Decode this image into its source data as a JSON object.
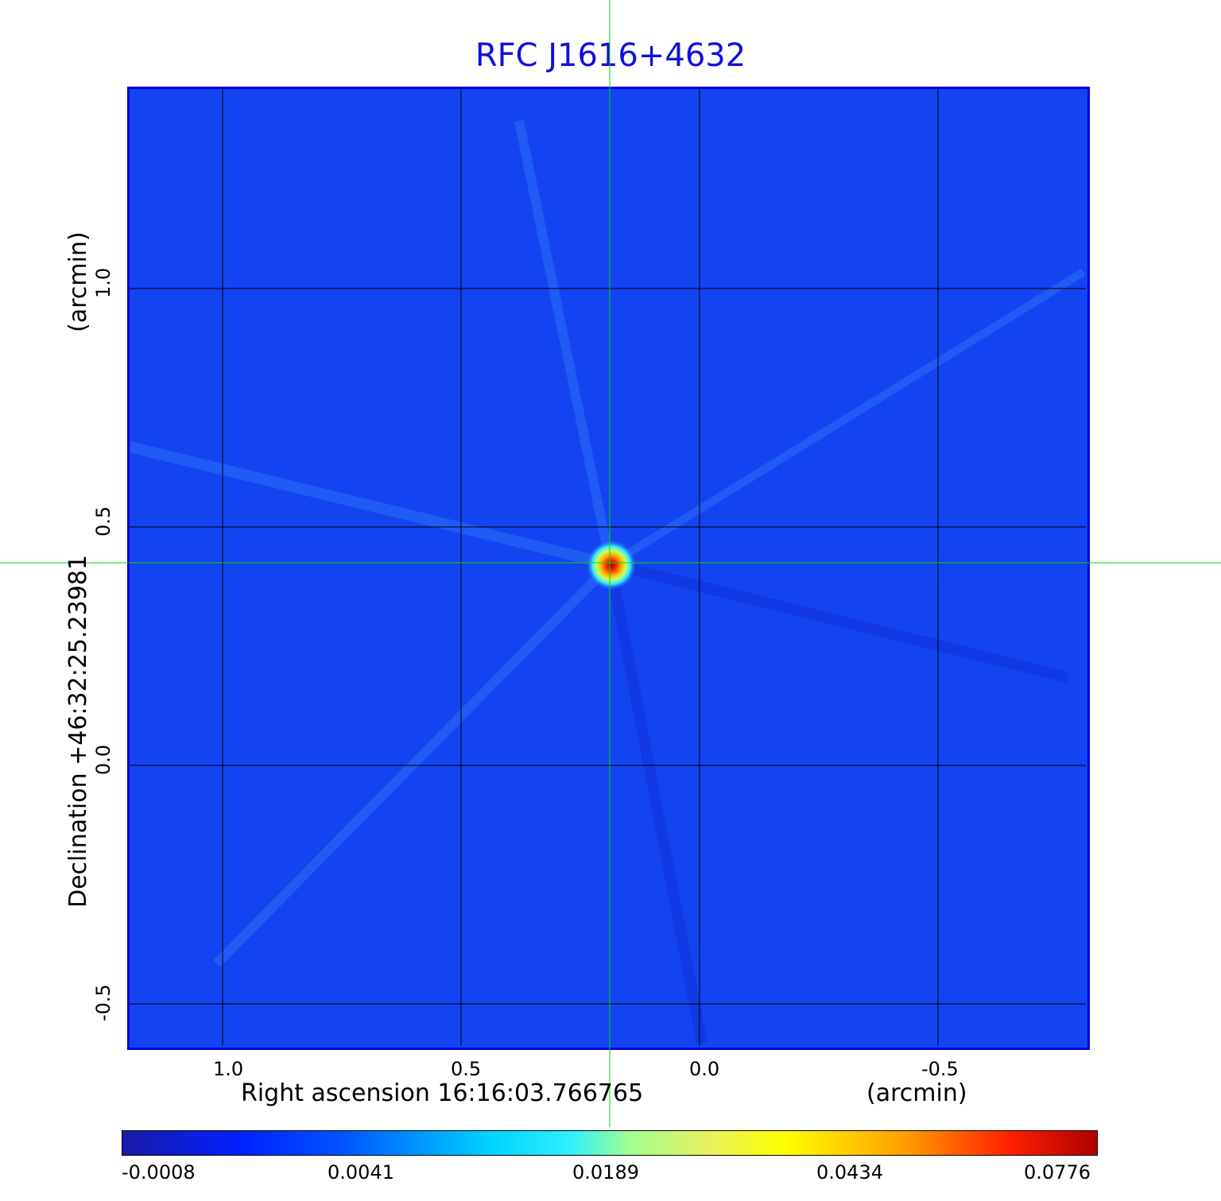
{
  "title": "RFC J1616+4632",
  "colors": {
    "title": "#1010dd",
    "frame": "#0000e0",
    "background_map": "#1444f2",
    "crosshair": "#00dd00",
    "grid": "#000000"
  },
  "x_axis": {
    "label": "Right ascension  16:16:03.766765",
    "unit": "(arcmin)",
    "ticks": [
      "1.0",
      "0.5",
      "0.0",
      "-0.5"
    ]
  },
  "y_axis": {
    "label": "Declination  +46:32:25.23981",
    "unit": "(arcmin)",
    "ticks": [
      "1.0",
      "0.5",
      "0.0",
      "-0.5"
    ]
  },
  "colorbar": {
    "ticks": [
      "-0.0008",
      "0.0041",
      "0.0189",
      "0.0434",
      "0.0776"
    ]
  },
  "source": {
    "ra_offset_arcmin": 0.19,
    "dec_offset_arcmin": 0.42,
    "peak_value": 0.0776
  }
}
